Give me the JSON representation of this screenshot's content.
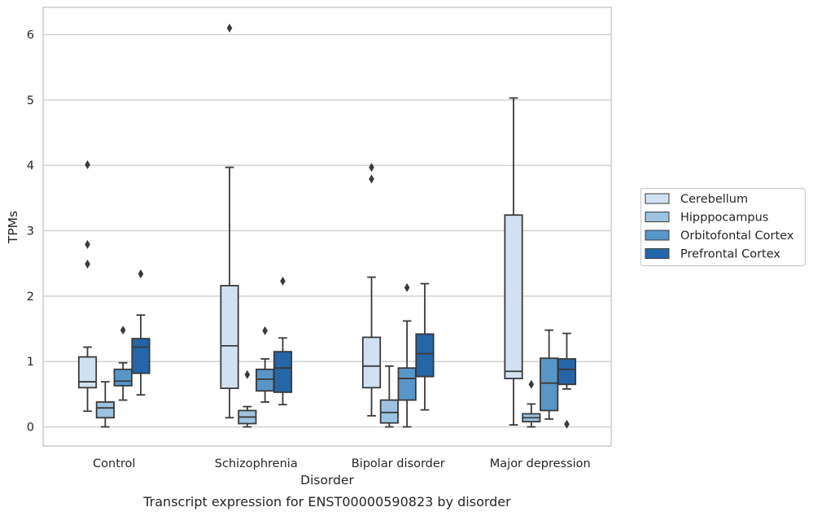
{
  "chart_data": {
    "type": "boxplot",
    "caption": "Transcript expression for ENST00000590823 by disorder",
    "xlabel": "Disorder",
    "ylabel": "TPMs",
    "ylim": [
      -0.3,
      6.4
    ],
    "yticks": [
      0,
      1,
      2,
      3,
      4,
      5,
      6
    ],
    "grid": "horizontal",
    "legend_position": "right",
    "categories": [
      "Control",
      "Schizophrenia",
      "Bipolar disorder",
      "Major depression"
    ],
    "series": [
      {
        "name": "Cerebellum",
        "color": "#d1e1f1",
        "boxes": [
          {
            "whislo": 0.24,
            "q1": 0.6,
            "med": 0.69,
            "q3": 1.07,
            "whishi": 1.22,
            "fliers": [
              2.49,
              2.79,
              4.01
            ]
          },
          {
            "whislo": 0.14,
            "q1": 0.59,
            "med": 1.24,
            "q3": 2.16,
            "whishi": 3.97,
            "fliers": [
              6.1
            ]
          },
          {
            "whislo": 0.17,
            "q1": 0.6,
            "med": 0.93,
            "q3": 1.37,
            "whishi": 2.29,
            "fliers": [
              3.79,
              3.97
            ]
          },
          {
            "whislo": 0.03,
            "q1": 0.74,
            "med": 0.85,
            "q3": 3.24,
            "whishi": 5.03,
            "fliers": []
          }
        ]
      },
      {
        "name": "Hipppocampus",
        "color": "#9dc3e0",
        "boxes": [
          {
            "whislo": 0.0,
            "q1": 0.14,
            "med": 0.29,
            "q3": 0.38,
            "whishi": 0.69,
            "fliers": []
          },
          {
            "whislo": 0.0,
            "q1": 0.05,
            "med": 0.15,
            "q3": 0.25,
            "whishi": 0.31,
            "fliers": [
              0.8
            ]
          },
          {
            "whislo": 0.0,
            "q1": 0.06,
            "med": 0.22,
            "q3": 0.41,
            "whishi": 0.93,
            "fliers": []
          },
          {
            "whislo": 0.0,
            "q1": 0.08,
            "med": 0.14,
            "q3": 0.2,
            "whishi": 0.35,
            "fliers": [
              0.65
            ]
          }
        ]
      },
      {
        "name": "Orbitofontal Cortex",
        "color": "#5896c8",
        "boxes": [
          {
            "whislo": 0.41,
            "q1": 0.63,
            "med": 0.7,
            "q3": 0.88,
            "whishi": 0.98,
            "fliers": [
              1.48
            ]
          },
          {
            "whislo": 0.38,
            "q1": 0.55,
            "med": 0.73,
            "q3": 0.88,
            "whishi": 1.04,
            "fliers": [
              1.47
            ]
          },
          {
            "whislo": 0.0,
            "q1": 0.41,
            "med": 0.74,
            "q3": 0.9,
            "whishi": 1.62,
            "fliers": [
              2.13
            ]
          },
          {
            "whislo": 0.12,
            "q1": 0.25,
            "med": 0.67,
            "q3": 1.05,
            "whishi": 1.48,
            "fliers": []
          }
        ]
      },
      {
        "name": "Prefrontal Cortex",
        "color": "#2466a8",
        "boxes": [
          {
            "whislo": 0.49,
            "q1": 0.82,
            "med": 1.22,
            "q3": 1.35,
            "whishi": 1.71,
            "fliers": [
              2.34
            ]
          },
          {
            "whislo": 0.34,
            "q1": 0.53,
            "med": 0.9,
            "q3": 1.15,
            "whishi": 1.36,
            "fliers": [
              2.23
            ]
          },
          {
            "whislo": 0.26,
            "q1": 0.77,
            "med": 1.12,
            "q3": 1.42,
            "whishi": 2.19,
            "fliers": []
          },
          {
            "whislo": 0.58,
            "q1": 0.65,
            "med": 0.88,
            "q3": 1.04,
            "whishi": 1.43,
            "fliers": [
              0.04
            ]
          }
        ]
      }
    ]
  }
}
